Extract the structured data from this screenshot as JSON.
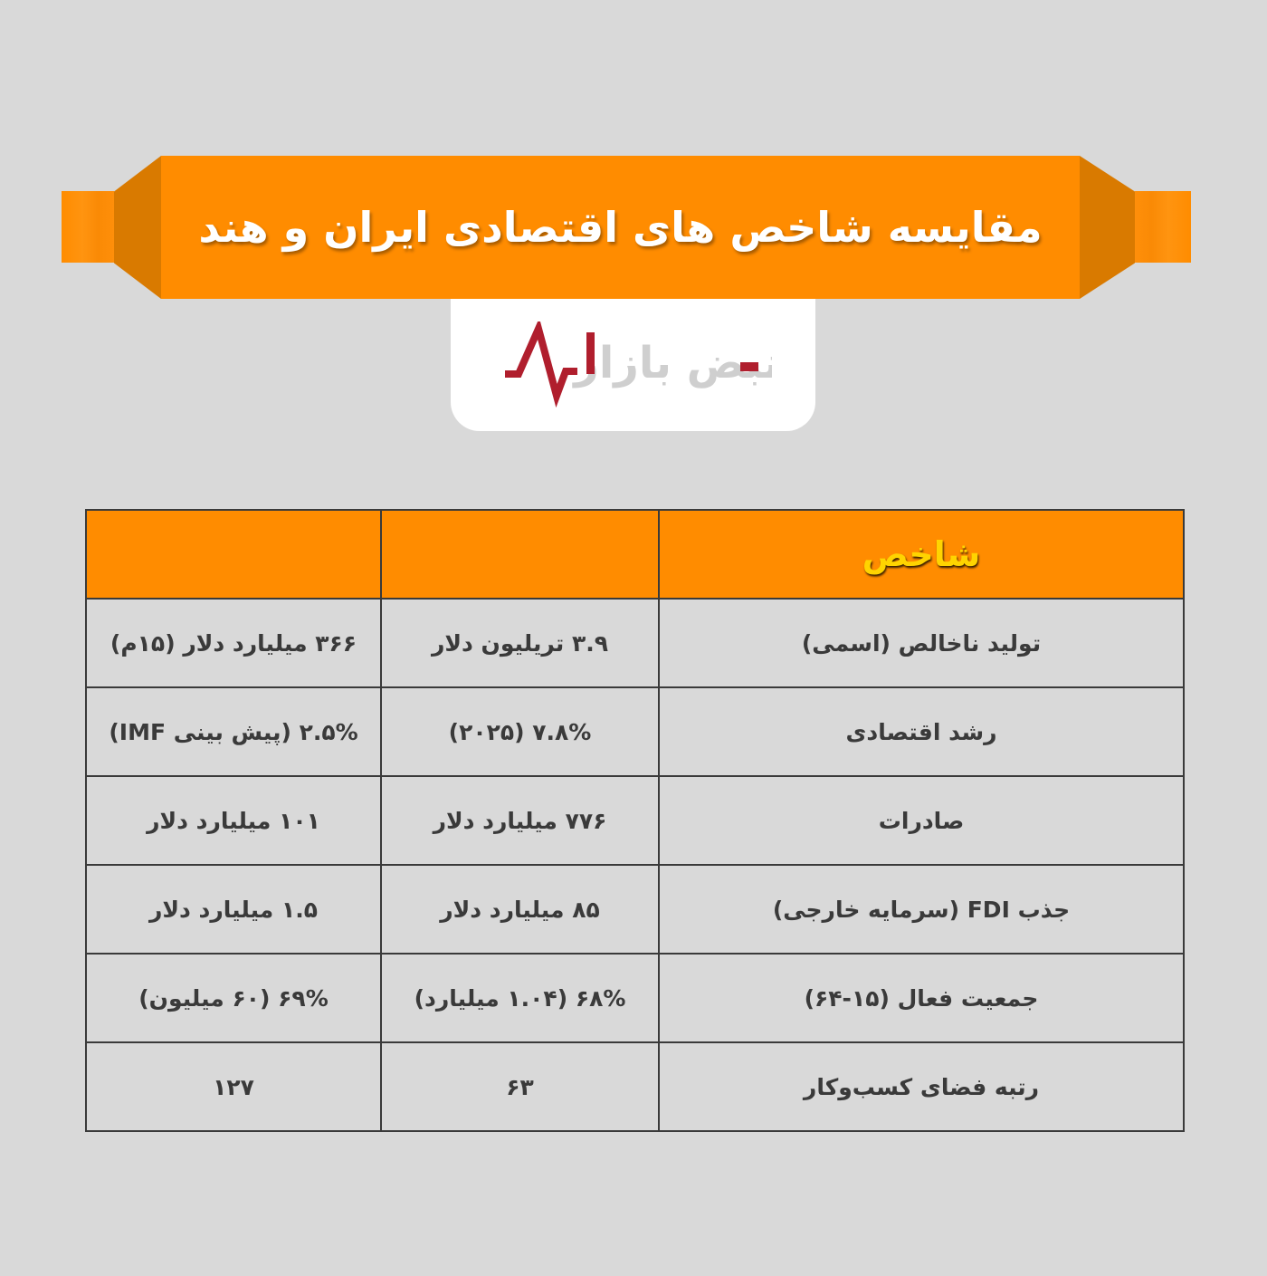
{
  "title": "مقایسه شاخص های اقتصادی ایران و هند",
  "logo": {
    "text": "نبض بازار",
    "colors": {
      "red": "#b01e2d",
      "gray": "#cfcfcf"
    }
  },
  "colors": {
    "accent": "#ff8c00",
    "accent_dark": "#d97a00",
    "header_text": "#ffd400",
    "background": "#d9d9d9"
  },
  "table": {
    "headers": [
      "شاخص",
      "",
      ""
    ],
    "rows": [
      {
        "indicator": "تولید ناخالص (اسمی)",
        "india": "۳.۹ تریلیون دلار",
        "iran": "۳۶۶ میلیارد دلار (۱۵م)"
      },
      {
        "indicator": "رشد اقتصادی",
        "india": "۷.۸% (۲۰۲۵)",
        "iran": "۲.۵% (پیش بینی IMF)"
      },
      {
        "indicator": "صادرات",
        "india": "۷۷۶ میلیارد دلار",
        "iran": "۱۰۱ میلیارد دلار"
      },
      {
        "indicator": "جذب FDI (سرمایه خارجی)",
        "india": "۸۵ میلیارد دلار",
        "iran": "۱.۵ میلیارد دلار"
      },
      {
        "indicator": "جمعیت فعال (۱۵-۶۴)",
        "india": "۶۸% (۱.۰۴ میلیارد)",
        "iran": "۶۹% (۶۰ میلیون)"
      },
      {
        "indicator": "رتبه فضای کسب‌وکار",
        "india": "۶۳",
        "iran": "۱۲۷"
      }
    ]
  }
}
